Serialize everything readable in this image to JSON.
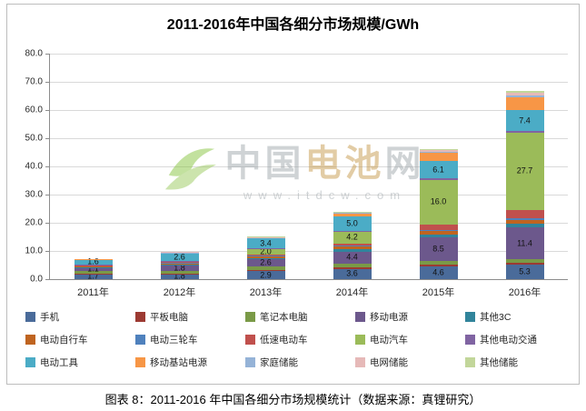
{
  "figure": {
    "title": "2011-2016年中国各细分市场规模/GWh",
    "caption": "图表 8：2011-2016 年中国各细分市场规模统计（数据来源：真锂研究）",
    "watermark": {
      "part1": "中国",
      "part2": "电池",
      "part3": "网",
      "sub": "www.itdcw.com"
    }
  },
  "chart_data": {
    "type": "bar",
    "stacked": true,
    "title": "2011-2016年中国各细分市场规模/GWh",
    "xlabel": "",
    "ylabel": "",
    "unit": "GWh",
    "ylim": [
      0,
      80
    ],
    "ytick_step": 10,
    "yticks": [
      "0.0",
      "10.0",
      "20.0",
      "30.0",
      "40.0",
      "50.0",
      "60.0",
      "70.0",
      "80.0"
    ],
    "grid": true,
    "legend_position": "bottom",
    "categories": [
      "2011年",
      "2012年",
      "2013年",
      "2014年",
      "2015年",
      "2016年"
    ],
    "series": [
      {
        "name": "手机",
        "color": "#4a6b9a",
        "values": [
          1.7,
          1.8,
          2.9,
          3.6,
          4.6,
          5.3
        ],
        "labels": [
          "1.7",
          "1.8",
          "2.9",
          "3.6",
          "4.6",
          "5.3"
        ]
      },
      {
        "name": "平板电脑",
        "color": "#9c3a32",
        "values": [
          0.2,
          0.3,
          0.4,
          0.5,
          0.5,
          0.5
        ],
        "labels": null
      },
      {
        "name": "笔记本电脑",
        "color": "#7a9a47",
        "values": [
          1.0,
          0.9,
          1.2,
          1.3,
          1.2,
          1.2
        ],
        "labels": null
      },
      {
        "name": "移动电源",
        "color": "#6c588c",
        "values": [
          1.1,
          1.8,
          2.6,
          4.4,
          8.5,
          11.4
        ],
        "labels": [
          "1.1",
          "1.8",
          "2.6",
          "4.4",
          "8.5",
          "11.4"
        ]
      },
      {
        "name": "其他3C",
        "color": "#31849b",
        "values": [
          0.2,
          0.3,
          0.4,
          1.0,
          1.0,
          1.2
        ],
        "labels": null
      },
      {
        "name": "电动自行车",
        "color": "#bf6420",
        "values": [
          0.4,
          0.5,
          0.7,
          0.9,
          1.2,
          1.4
        ],
        "labels": null
      },
      {
        "name": "电动三轮车",
        "color": "#4f81bd",
        "values": [
          0.1,
          0.2,
          0.3,
          0.4,
          0.5,
          0.6
        ],
        "labels": null
      },
      {
        "name": "低速电动车",
        "color": "#c0504d",
        "values": [
          0.1,
          0.2,
          0.3,
          0.6,
          1.8,
          2.8
        ],
        "labels": null
      },
      {
        "name": "电动汽车",
        "color": "#9bbb59",
        "values": [
          0.3,
          0.4,
          2.0,
          4.2,
          16.0,
          27.7
        ],
        "labels": [
          null,
          null,
          "2.0",
          "4.2",
          "16.0",
          "27.7"
        ]
      },
      {
        "name": "其他电动交通",
        "color": "#8064a2",
        "values": [
          0.1,
          0.1,
          0.2,
          0.3,
          0.4,
          0.5
        ],
        "labels": null
      },
      {
        "name": "电动工具",
        "color": "#4bacc6",
        "values": [
          1.6,
          2.6,
          3.4,
          5.0,
          6.1,
          7.4
        ],
        "labels": [
          "1.6",
          "2.6",
          "3.4",
          "5.0",
          "6.1",
          "7.4"
        ]
      },
      {
        "name": "移动基站电源",
        "color": "#f79646",
        "values": [
          0.2,
          0.3,
          0.4,
          1.2,
          3.0,
          4.5
        ],
        "labels": null
      },
      {
        "name": "家庭储能",
        "color": "#95b3d7",
        "values": [
          0.0,
          0.1,
          0.1,
          0.2,
          0.5,
          0.8
        ],
        "labels": null
      },
      {
        "name": "电网储能",
        "color": "#e6b9b8",
        "values": [
          0.0,
          0.1,
          0.1,
          0.2,
          0.5,
          0.8
        ],
        "labels": null
      },
      {
        "name": "其他储能",
        "color": "#c2d69a",
        "values": [
          0.0,
          0.0,
          0.1,
          0.1,
          0.3,
          0.6
        ],
        "labels": null
      }
    ]
  }
}
